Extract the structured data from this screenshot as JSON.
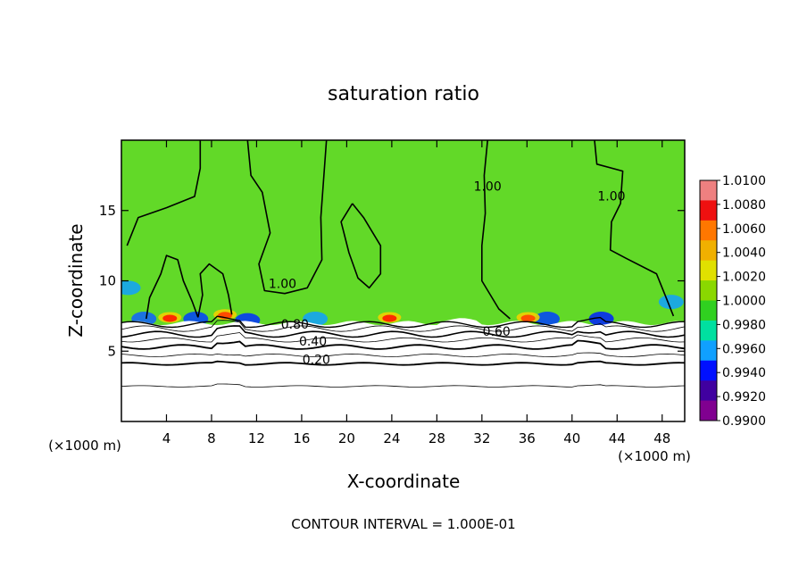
{
  "chart_data": {
    "type": "heatmap",
    "title": "saturation ratio",
    "xlabel": "X-coordinate",
    "ylabel": "Z-coordinate",
    "x_unit": "(×1000 m)",
    "x_unit_right": "(×1000 m)",
    "xlim": [
      0,
      50
    ],
    "ylim": [
      0,
      20
    ],
    "x_ticks": [
      4,
      8,
      12,
      16,
      20,
      24,
      28,
      32,
      36,
      40,
      44,
      48
    ],
    "y_ticks": [
      5,
      10,
      15
    ],
    "contour_interval_text": "CONTOUR INTERVAL = 1.000E-01",
    "contour_labels": [
      {
        "text": "1.00",
        "x": 14.3,
        "z": 9.5
      },
      {
        "text": "1.00",
        "x": 32.5,
        "z": 16.4
      },
      {
        "text": "1.00",
        "x": 43.5,
        "z": 15.7
      },
      {
        "text": "0.80",
        "x": 15.4,
        "z": 6.6
      },
      {
        "text": "0.60",
        "x": 33.3,
        "z": 6.1
      },
      {
        "text": "0.40",
        "x": 17.0,
        "z": 5.4
      },
      {
        "text": "0.20",
        "x": 17.3,
        "z": 4.1
      }
    ],
    "colorbar": {
      "labels": [
        "1.0100",
        "1.0080",
        "1.0060",
        "1.0040",
        "1.0020",
        "1.0000",
        "0.9980",
        "0.9960",
        "0.9940",
        "0.9920",
        "0.9900"
      ],
      "colors": [
        "#ee8080",
        "#ee1010",
        "#ff7700",
        "#f0b000",
        "#e0e000",
        "#8ad800",
        "#30d020",
        "#00e0a0",
        "#10a0ff",
        "#0010ff",
        "#4000a0",
        "#800090"
      ]
    },
    "fields": {
      "background_color": "#62d928",
      "dry_layer_color": "#ffffff",
      "hot_spots": [
        {
          "x": 4.3,
          "z": 7.4,
          "color": "#ff2a00"
        },
        {
          "x": 9.2,
          "z": 7.6,
          "color": "#ff4a00"
        },
        {
          "x": 23.8,
          "z": 7.4,
          "color": "#ff2a00"
        },
        {
          "x": 36.1,
          "z": 7.4,
          "color": "#ff5000"
        }
      ],
      "cold_spots": [
        {
          "x": 0.6,
          "z": 9.5,
          "color": "#10a0ff"
        },
        {
          "x": 2.0,
          "z": 7.3,
          "color": "#1060ff"
        },
        {
          "x": 6.6,
          "z": 7.3,
          "color": "#0040ff"
        },
        {
          "x": 11.2,
          "z": 7.2,
          "color": "#0030ff"
        },
        {
          "x": 17.2,
          "z": 7.3,
          "color": "#10a0ff"
        },
        {
          "x": 37.8,
          "z": 7.3,
          "color": "#0040ff"
        },
        {
          "x": 42.6,
          "z": 7.3,
          "color": "#0020ff"
        },
        {
          "x": 48.8,
          "z": 8.5,
          "color": "#10a0ff"
        }
      ]
    }
  }
}
